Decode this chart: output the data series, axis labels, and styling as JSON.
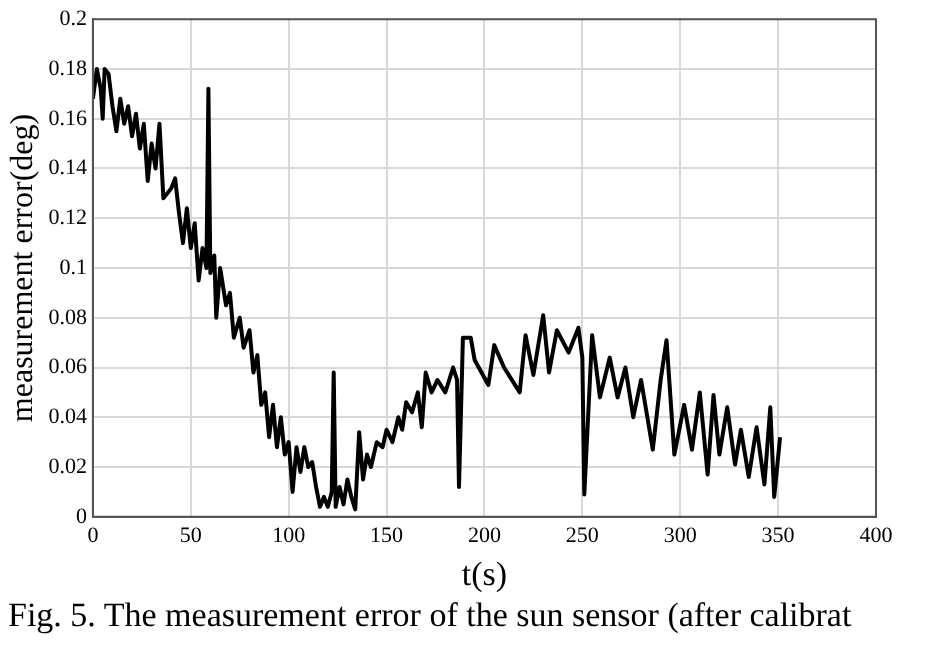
{
  "chart_data": {
    "type": "line",
    "xlabel": "t(s)",
    "ylabel": "measurement error(deg)",
    "annotations": [
      "Fig. 5. The measurement error of the sun sensor (after calibrat"
    ],
    "xlim": [
      0,
      400
    ],
    "xticks": [
      0,
      50,
      100,
      150,
      200,
      250,
      300,
      350,
      400
    ],
    "ylim": [
      0,
      0.2
    ],
    "yticks": [
      0,
      0.02,
      0.04,
      0.06,
      0.08,
      0.1,
      0.12,
      0.14,
      0.16,
      0.18,
      0.2
    ],
    "grid": true,
    "legend": false,
    "marker": "none",
    "line_style": "solid",
    "series": [
      {
        "color": "#000000",
        "x": [
          0,
          2,
          4,
          5,
          6,
          8,
          10,
          12,
          14,
          16,
          18,
          20,
          22,
          24,
          26,
          28,
          30,
          32,
          34,
          36,
          40,
          42,
          44,
          46,
          48,
          50,
          52,
          54,
          56,
          58,
          59,
          60,
          62,
          63,
          65,
          68,
          70,
          72,
          75,
          77,
          80,
          82,
          84,
          86,
          88,
          90,
          92,
          94,
          96,
          98,
          100,
          102,
          104,
          106,
          108,
          110,
          112,
          114,
          116,
          118,
          120,
          122,
          123,
          124,
          126,
          128,
          130,
          132,
          134,
          136,
          138,
          140,
          142,
          145,
          148,
          150,
          153,
          156,
          158,
          160,
          163,
          166,
          168,
          170,
          173,
          176,
          180,
          184,
          186,
          187,
          189,
          193,
          195,
          202,
          205,
          210,
          218,
          221,
          225,
          230,
          233,
          237,
          243,
          248,
          250,
          251,
          255,
          259,
          264,
          268,
          272,
          276,
          280,
          286,
          290,
          293,
          297,
          302,
          306,
          310,
          314,
          317,
          320,
          324,
          328,
          331,
          335,
          339,
          343,
          346,
          348,
          351
        ],
        "values": [
          0.168,
          0.18,
          0.172,
          0.16,
          0.18,
          0.178,
          0.165,
          0.155,
          0.168,
          0.158,
          0.165,
          0.153,
          0.162,
          0.148,
          0.158,
          0.135,
          0.15,
          0.14,
          0.158,
          0.128,
          0.132,
          0.136,
          0.122,
          0.11,
          0.124,
          0.108,
          0.118,
          0.095,
          0.108,
          0.1,
          0.172,
          0.098,
          0.105,
          0.08,
          0.1,
          0.085,
          0.09,
          0.072,
          0.08,
          0.068,
          0.075,
          0.058,
          0.065,
          0.045,
          0.05,
          0.032,
          0.045,
          0.028,
          0.04,
          0.025,
          0.03,
          0.01,
          0.028,
          0.018,
          0.028,
          0.02,
          0.022,
          0.012,
          0.004,
          0.008,
          0.004,
          0.01,
          0.058,
          0.004,
          0.012,
          0.005,
          0.015,
          0.008,
          0.003,
          0.034,
          0.015,
          0.025,
          0.02,
          0.03,
          0.028,
          0.035,
          0.03,
          0.04,
          0.035,
          0.046,
          0.042,
          0.05,
          0.036,
          0.058,
          0.05,
          0.055,
          0.05,
          0.06,
          0.055,
          0.012,
          0.072,
          0.072,
          0.063,
          0.053,
          0.069,
          0.06,
          0.05,
          0.073,
          0.057,
          0.081,
          0.058,
          0.075,
          0.066,
          0.076,
          0.064,
          0.009,
          0.073,
          0.048,
          0.064,
          0.048,
          0.06,
          0.04,
          0.055,
          0.027,
          0.055,
          0.071,
          0.025,
          0.045,
          0.027,
          0.05,
          0.017,
          0.049,
          0.025,
          0.044,
          0.021,
          0.035,
          0.016,
          0.036,
          0.013,
          0.044,
          0.008,
          0.032
        ]
      }
    ]
  }
}
